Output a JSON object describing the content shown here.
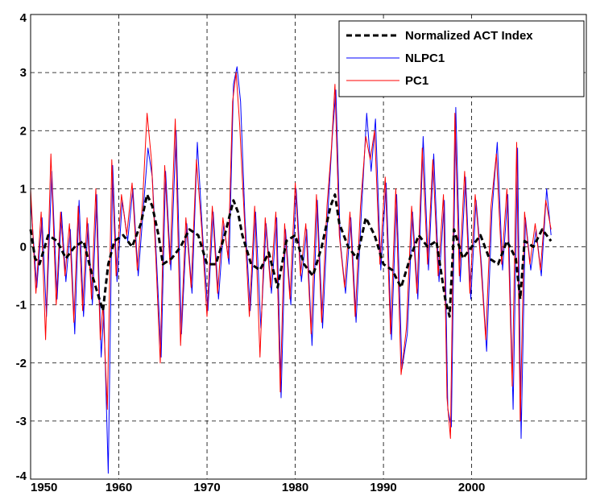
{
  "chart_data": {
    "type": "line",
    "title": "",
    "xlabel": "",
    "ylabel": "",
    "xlim": [
      1950,
      2013
    ],
    "ylim": [
      -4,
      4
    ],
    "x_ticks": [
      "1950",
      "1960",
      "1970",
      "1980",
      "1990",
      "2000"
    ],
    "y_ticks": [
      "-4",
      "-3",
      "-2",
      "-1",
      "0",
      "1",
      "2",
      "3",
      "4"
    ],
    "grid": true,
    "legend_position": "top-right",
    "series": [
      {
        "name": "Normalized ACT Index",
        "color": "#000000",
        "style": "dashed",
        "x": [
          1950.0,
          1950.5,
          1951.0,
          1952.0,
          1953.0,
          1954.0,
          1955.0,
          1956.0,
          1957.0,
          1957.6,
          1958.2,
          1958.8,
          1959.5,
          1960.5,
          1961.5,
          1962.5,
          1963.2,
          1963.8,
          1964.5,
          1965.0,
          1966.0,
          1967.0,
          1968.0,
          1969.0,
          1970.0,
          1971.0,
          1972.0,
          1973.0,
          1973.5,
          1974.0,
          1975.0,
          1976.0,
          1977.0,
          1978.0,
          1979.0,
          1980.0,
          1981.0,
          1982.0,
          1983.0,
          1984.0,
          1984.5,
          1985.0,
          1986.0,
          1987.0,
          1988.0,
          1989.0,
          1990.0,
          1991.0,
          1992.0,
          1993.0,
          1994.0,
          1995.0,
          1996.0,
          1997.0,
          1997.5,
          1998.0,
          1999.0,
          2000.0,
          2001.0,
          2002.0,
          2003.0,
          2004.0,
          2005.0,
          2005.5,
          2006.0,
          2007.0,
          2008.0,
          2009.0
        ],
        "values": [
          0.3,
          -0.2,
          -0.3,
          0.2,
          0.1,
          -0.2,
          0.0,
          0.1,
          -0.5,
          -0.8,
          -1.1,
          -0.3,
          0.1,
          0.2,
          0.0,
          0.4,
          0.9,
          0.7,
          0.2,
          -0.3,
          -0.2,
          0.0,
          0.3,
          0.2,
          -0.3,
          -0.3,
          0.2,
          0.8,
          0.6,
          0.2,
          -0.3,
          -0.4,
          -0.1,
          -0.7,
          0.1,
          0.2,
          -0.3,
          -0.5,
          0.0,
          0.7,
          0.9,
          0.4,
          0.0,
          -0.2,
          0.5,
          0.2,
          -0.3,
          -0.4,
          -0.7,
          -0.2,
          0.2,
          0.0,
          0.1,
          -0.9,
          -1.2,
          0.3,
          -0.2,
          0.0,
          0.2,
          -0.2,
          -0.3,
          0.1,
          -0.2,
          -0.9,
          0.1,
          0.0,
          0.3,
          0.1
        ]
      },
      {
        "name": "NLPC1",
        "color": "#0000ff",
        "style": "solid",
        "x": [
          1950.0,
          1950.7,
          1951.3,
          1951.8,
          1952.4,
          1953.0,
          1953.5,
          1954.0,
          1954.5,
          1955.0,
          1955.5,
          1956.0,
          1956.5,
          1957.0,
          1957.5,
          1958.0,
          1958.3,
          1958.8,
          1959.3,
          1959.8,
          1960.4,
          1961.0,
          1961.6,
          1962.2,
          1962.8,
          1963.3,
          1963.8,
          1964.3,
          1964.8,
          1965.3,
          1965.9,
          1966.5,
          1967.1,
          1967.7,
          1968.3,
          1968.9,
          1969.5,
          1970.1,
          1970.7,
          1971.3,
          1971.9,
          1972.5,
          1973.0,
          1973.4,
          1973.8,
          1974.3,
          1974.9,
          1975.5,
          1976.1,
          1976.7,
          1977.3,
          1977.9,
          1978.4,
          1978.9,
          1979.5,
          1980.1,
          1980.7,
          1981.3,
          1981.9,
          1982.5,
          1983.1,
          1983.7,
          1984.2,
          1984.6,
          1985.1,
          1985.7,
          1986.3,
          1986.9,
          1987.5,
          1988.1,
          1988.6,
          1989.1,
          1989.7,
          1990.3,
          1990.9,
          1991.5,
          1992.1,
          1992.7,
          1993.3,
          1993.9,
          1994.5,
          1995.1,
          1995.7,
          1996.3,
          1996.9,
          1997.3,
          1997.7,
          1998.2,
          1998.7,
          1999.3,
          1999.9,
          2000.5,
          2001.1,
          2001.7,
          2002.3,
          2002.9,
          2003.5,
          2004.1,
          2004.7,
          2005.2,
          2005.6,
          2006.1,
          2006.7,
          2007.3,
          2007.9,
          2008.5,
          2009.0
        ],
        "values": [
          0.8,
          -0.7,
          0.5,
          -1.2,
          1.3,
          -0.9,
          0.6,
          -0.6,
          0.3,
          -1.5,
          0.8,
          -1.2,
          0.4,
          -1.0,
          0.9,
          -1.9,
          -1.1,
          -3.9,
          1.4,
          -0.6,
          0.8,
          0.1,
          1.0,
          -0.5,
          0.7,
          1.7,
          1.2,
          -0.3,
          -1.9,
          1.3,
          -0.4,
          2.0,
          -1.5,
          0.4,
          -0.8,
          1.8,
          0.2,
          -1.1,
          0.6,
          -0.9,
          0.4,
          -0.3,
          2.8,
          3.1,
          2.5,
          0.5,
          -1.1,
          0.6,
          -1.4,
          0.4,
          -0.8,
          0.5,
          -2.6,
          0.3,
          -1.0,
          1.0,
          -0.6,
          0.3,
          -1.7,
          0.8,
          -1.4,
          0.6,
          1.9,
          2.7,
          0.1,
          -0.8,
          0.5,
          -1.3,
          0.6,
          2.3,
          1.3,
          2.2,
          -0.4,
          1.1,
          -1.6,
          0.9,
          -2.1,
          -1.5,
          0.6,
          -0.9,
          1.9,
          -0.4,
          1.6,
          -0.6,
          0.8,
          -2.8,
          -3.1,
          2.4,
          -0.6,
          1.2,
          -0.9,
          0.8,
          -0.3,
          -1.8,
          0.6,
          1.8,
          -0.4,
          0.9,
          -2.8,
          1.7,
          -3.3,
          0.5,
          -0.4,
          0.3,
          -0.5,
          1.0,
          0.2
        ]
      },
      {
        "name": "PC1",
        "color": "#ff0000",
        "style": "solid",
        "x": [
          1950.0,
          1950.6,
          1951.2,
          1951.7,
          1952.3,
          1952.9,
          1953.4,
          1953.9,
          1954.4,
          1954.9,
          1955.4,
          1955.9,
          1956.4,
          1956.9,
          1957.4,
          1957.9,
          1958.2,
          1958.7,
          1959.2,
          1959.7,
          1960.3,
          1960.9,
          1961.5,
          1962.1,
          1962.7,
          1963.2,
          1963.7,
          1964.2,
          1964.7,
          1965.2,
          1965.8,
          1966.4,
          1967.0,
          1967.6,
          1968.2,
          1968.8,
          1969.4,
          1970.0,
          1970.6,
          1971.2,
          1971.8,
          1972.4,
          1972.9,
          1973.3,
          1973.7,
          1974.2,
          1974.8,
          1975.4,
          1976.0,
          1976.6,
          1977.2,
          1977.8,
          1978.3,
          1978.8,
          1979.4,
          1980.0,
          1980.6,
          1981.2,
          1981.8,
          1982.4,
          1983.0,
          1983.6,
          1984.1,
          1984.5,
          1985.0,
          1985.6,
          1986.2,
          1986.8,
          1987.4,
          1988.0,
          1988.5,
          1989.0,
          1989.6,
          1990.2,
          1990.8,
          1991.4,
          1992.0,
          1992.6,
          1993.2,
          1993.8,
          1994.4,
          1995.0,
          1995.6,
          1996.2,
          1996.8,
          1997.2,
          1997.6,
          1998.1,
          1998.6,
          1999.2,
          1999.8,
          2000.4,
          2001.0,
          2001.6,
          2002.2,
          2002.8,
          2003.4,
          2004.0,
          2004.6,
          2005.1,
          2005.5,
          2006.0,
          2006.6,
          2007.2,
          2007.8,
          2008.4,
          2009.0
        ],
        "values": [
          1.0,
          -0.8,
          0.6,
          -1.6,
          1.6,
          -1.0,
          0.6,
          -0.5,
          0.4,
          -1.3,
          0.7,
          -1.1,
          0.5,
          -0.9,
          1.0,
          -1.6,
          -1.0,
          -2.8,
          1.5,
          -0.5,
          0.9,
          0.2,
          1.1,
          -0.4,
          0.8,
          2.3,
          1.5,
          -0.2,
          -2.0,
          1.4,
          -0.3,
          2.2,
          -1.7,
          0.5,
          -0.7,
          1.5,
          0.3,
          -1.2,
          0.7,
          -0.8,
          0.5,
          -0.2,
          2.5,
          3.0,
          2.1,
          0.6,
          -1.2,
          0.7,
          -1.9,
          0.5,
          -0.7,
          0.6,
          -2.5,
          0.4,
          -0.9,
          1.1,
          -0.5,
          0.4,
          -1.5,
          0.9,
          -1.3,
          0.7,
          1.7,
          2.8,
          0.2,
          -0.7,
          0.6,
          -1.2,
          0.7,
          1.9,
          1.5,
          2.0,
          -0.3,
          1.2,
          -1.5,
          1.0,
          -2.2,
          -1.4,
          0.7,
          -0.8,
          1.7,
          -0.3,
          1.5,
          -0.5,
          0.9,
          -2.6,
          -3.3,
          2.3,
          -0.5,
          1.3,
          -0.8,
          0.9,
          -0.2,
          -1.6,
          0.7,
          1.6,
          -0.3,
          1.0,
          -2.4,
          1.8,
          -3.0,
          0.6,
          -0.3,
          0.4,
          -0.4,
          0.8,
          0.3
        ]
      }
    ]
  }
}
